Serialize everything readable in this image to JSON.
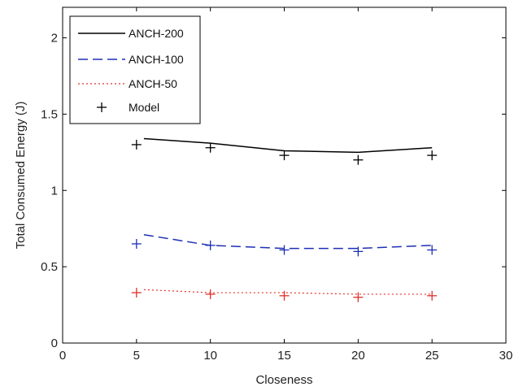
{
  "chart_data": {
    "type": "line",
    "xlabel": "Closeness",
    "ylabel": "Total Consumed Energy (J)",
    "xlim": [
      0,
      30
    ],
    "ylim": [
      0,
      2.2
    ],
    "xticks": [
      0,
      5,
      10,
      15,
      20,
      25,
      30
    ],
    "yticks": [
      0,
      0.5,
      1,
      1.5,
      2
    ],
    "xtick_labels": [
      "0",
      "5",
      "10",
      "15",
      "20",
      "25",
      "30"
    ],
    "ytick_labels": [
      "0",
      "0.5",
      "1",
      "1.5",
      "2"
    ],
    "grid": false,
    "legend_position": "top-left",
    "series": [
      {
        "name": "ANCH-200",
        "style": "solid",
        "color": "#000000",
        "x": [
          5.5,
          10,
          15,
          20,
          25
        ],
        "y": [
          1.34,
          1.31,
          1.26,
          1.25,
          1.28
        ]
      },
      {
        "name": "ANCH-100",
        "style": "dashed",
        "color": "#1f2fb5",
        "x": [
          5.5,
          10,
          15,
          20,
          25
        ],
        "y": [
          0.71,
          0.64,
          0.62,
          0.62,
          0.64
        ]
      },
      {
        "name": "ANCH-50",
        "style": "dotted",
        "color": "#e0302a",
        "x": [
          5.5,
          10,
          15,
          20,
          25
        ],
        "y": [
          0.35,
          0.33,
          0.33,
          0.32,
          0.32
        ]
      }
    ],
    "model_label": "Model",
    "model_points": [
      {
        "color": "#000000",
        "x": [
          5,
          10,
          15,
          20,
          25
        ],
        "y": [
          1.3,
          1.28,
          1.23,
          1.2,
          1.23
        ]
      },
      {
        "color": "#1f2fb5",
        "x": [
          5,
          10,
          15,
          20,
          25
        ],
        "y": [
          0.65,
          0.64,
          0.61,
          0.6,
          0.61
        ]
      },
      {
        "color": "#e0302a",
        "x": [
          5,
          10,
          15,
          20,
          25
        ],
        "y": [
          0.33,
          0.32,
          0.31,
          0.3,
          0.31
        ]
      }
    ]
  }
}
